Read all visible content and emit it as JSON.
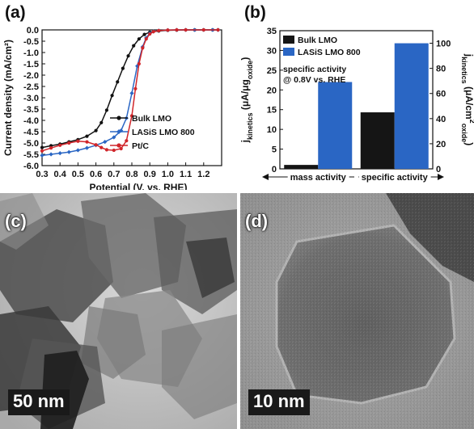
{
  "chart_data": [
    {
      "panel": "(a)",
      "type": "line",
      "xlabel": "Potential (V, vs. RHE)",
      "ylabel": "Current density (mA/cm²)",
      "xlim": [
        0.3,
        1.3
      ],
      "ylim": [
        -6.0,
        0.0
      ],
      "xticks": [
        "0.3",
        "0.4",
        "0.5",
        "0.6",
        "0.7",
        "0.8",
        "0.9",
        "1.0",
        "1.1",
        "1.2"
      ],
      "yticks": [
        "0.0",
        "-0.5",
        "-1.0",
        "-1.5",
        "-2.0",
        "-2.5",
        "-3.0",
        "-3.5",
        "-4.0",
        "-4.5",
        "-5.0",
        "-5.5",
        "-6.0"
      ],
      "legend_position": "bottom-right",
      "series": [
        {
          "name": "Bulk LMO",
          "color": "#111111",
          "marker": "circle",
          "x": [
            0.3,
            0.35,
            0.4,
            0.45,
            0.5,
            0.55,
            0.6,
            0.63,
            0.66,
            0.69,
            0.72,
            0.75,
            0.78,
            0.81,
            0.84,
            0.87,
            0.9,
            0.95,
            1.0,
            1.05,
            1.1,
            1.15,
            1.2,
            1.25,
            1.28
          ],
          "y": [
            -5.2,
            -5.12,
            -5.05,
            -4.95,
            -4.85,
            -4.7,
            -4.45,
            -4.1,
            -3.55,
            -2.9,
            -2.3,
            -1.7,
            -1.15,
            -0.7,
            -0.4,
            -0.2,
            -0.1,
            -0.05,
            -0.02,
            -0.01,
            0.0,
            0.0,
            0.0,
            0.0,
            0.0
          ]
        },
        {
          "name": "LASiS LMO 800",
          "color": "#2a66c4",
          "marker": "diamond",
          "x": [
            0.3,
            0.35,
            0.4,
            0.45,
            0.5,
            0.55,
            0.6,
            0.65,
            0.7,
            0.74,
            0.77,
            0.8,
            0.83,
            0.86,
            0.88,
            0.9,
            0.92,
            0.95,
            1.0,
            1.05,
            1.1,
            1.15,
            1.2,
            1.25,
            1.28
          ],
          "y": [
            -5.55,
            -5.5,
            -5.45,
            -5.4,
            -5.32,
            -5.22,
            -5.1,
            -4.95,
            -4.75,
            -4.45,
            -3.9,
            -2.8,
            -1.6,
            -0.75,
            -0.35,
            -0.15,
            -0.07,
            -0.03,
            -0.01,
            0.0,
            0.0,
            0.0,
            0.0,
            0.0,
            0.0
          ]
        },
        {
          "name": "Pt/C",
          "color": "#d0252a",
          "marker": "circle",
          "x": [
            0.3,
            0.35,
            0.4,
            0.45,
            0.5,
            0.55,
            0.6,
            0.63,
            0.66,
            0.7,
            0.74,
            0.77,
            0.8,
            0.82,
            0.84,
            0.86,
            0.88,
            0.9,
            0.92,
            0.95,
            1.0,
            1.05,
            1.1,
            1.2,
            1.28
          ],
          "y": [
            -5.35,
            -5.22,
            -5.1,
            -5.0,
            -4.92,
            -4.95,
            -5.08,
            -5.2,
            -5.3,
            -5.32,
            -5.25,
            -4.9,
            -3.8,
            -2.6,
            -1.5,
            -0.8,
            -0.4,
            -0.18,
            -0.08,
            -0.03,
            -0.01,
            0.0,
            0.0,
            0.0,
            0.0
          ]
        }
      ]
    },
    {
      "panel": "(b)",
      "type": "bar",
      "categories": [
        "mass activity",
        "specific activity"
      ],
      "ylabel_left": "j_kinetics (μA/μg_oxide)",
      "ylabel_right": "j_kinetics (μA/cm²_oxide)",
      "ylim_left": [
        0,
        35
      ],
      "ylim_right": [
        0,
        110
      ],
      "yticks_left": [
        "0",
        "5",
        "10",
        "15",
        "20",
        "25",
        "30",
        "35"
      ],
      "yticks_right": [
        "0",
        "20",
        "40",
        "60",
        "80",
        "100"
      ],
      "annotation_line1": "specific activity",
      "annotation_line2": "@ 0.8V vs. RHE",
      "legend_position": "top-left",
      "series": [
        {
          "name": "Bulk LMO",
          "color": "#151515",
          "values": [
            1.0,
            45
          ],
          "axis": [
            "left",
            "right"
          ]
        },
        {
          "name": "LASiS LMO 800",
          "color": "#2a66c4",
          "values": [
            22,
            100
          ],
          "axis": [
            "left",
            "right"
          ]
        }
      ]
    }
  ],
  "panels": {
    "a_label": "(a)",
    "b_label": "(b)",
    "c_label": "(c)",
    "d_label": "(d)",
    "c_scalebar": "50 nm",
    "d_scalebar": "10 nm"
  }
}
